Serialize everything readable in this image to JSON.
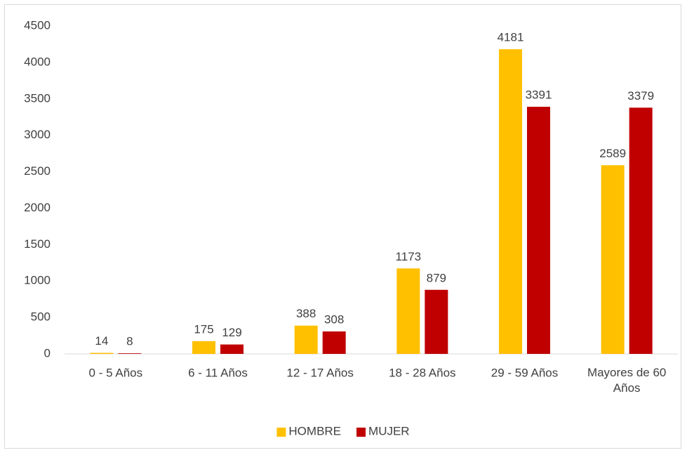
{
  "chart_data": {
    "type": "bar",
    "categories": [
      "0 - 5 Años",
      "6 - 11 Años",
      "12 - 17 Años",
      "18 - 28 Años",
      "29 - 59 Años",
      "Mayores de 60 Años"
    ],
    "series": [
      {
        "name": "HOMBRE",
        "color": "#ffc000",
        "values": [
          14,
          175,
          388,
          1173,
          4181,
          2589
        ]
      },
      {
        "name": "MUJER",
        "color": "#c00000",
        "values": [
          8,
          129,
          308,
          879,
          3391,
          3379
        ]
      }
    ],
    "ylim": [
      0,
      4500
    ],
    "yticks": [
      0,
      500,
      1000,
      1500,
      2000,
      2500,
      3000,
      3500,
      4000,
      4500
    ],
    "grid": false,
    "legend": "bottom"
  }
}
